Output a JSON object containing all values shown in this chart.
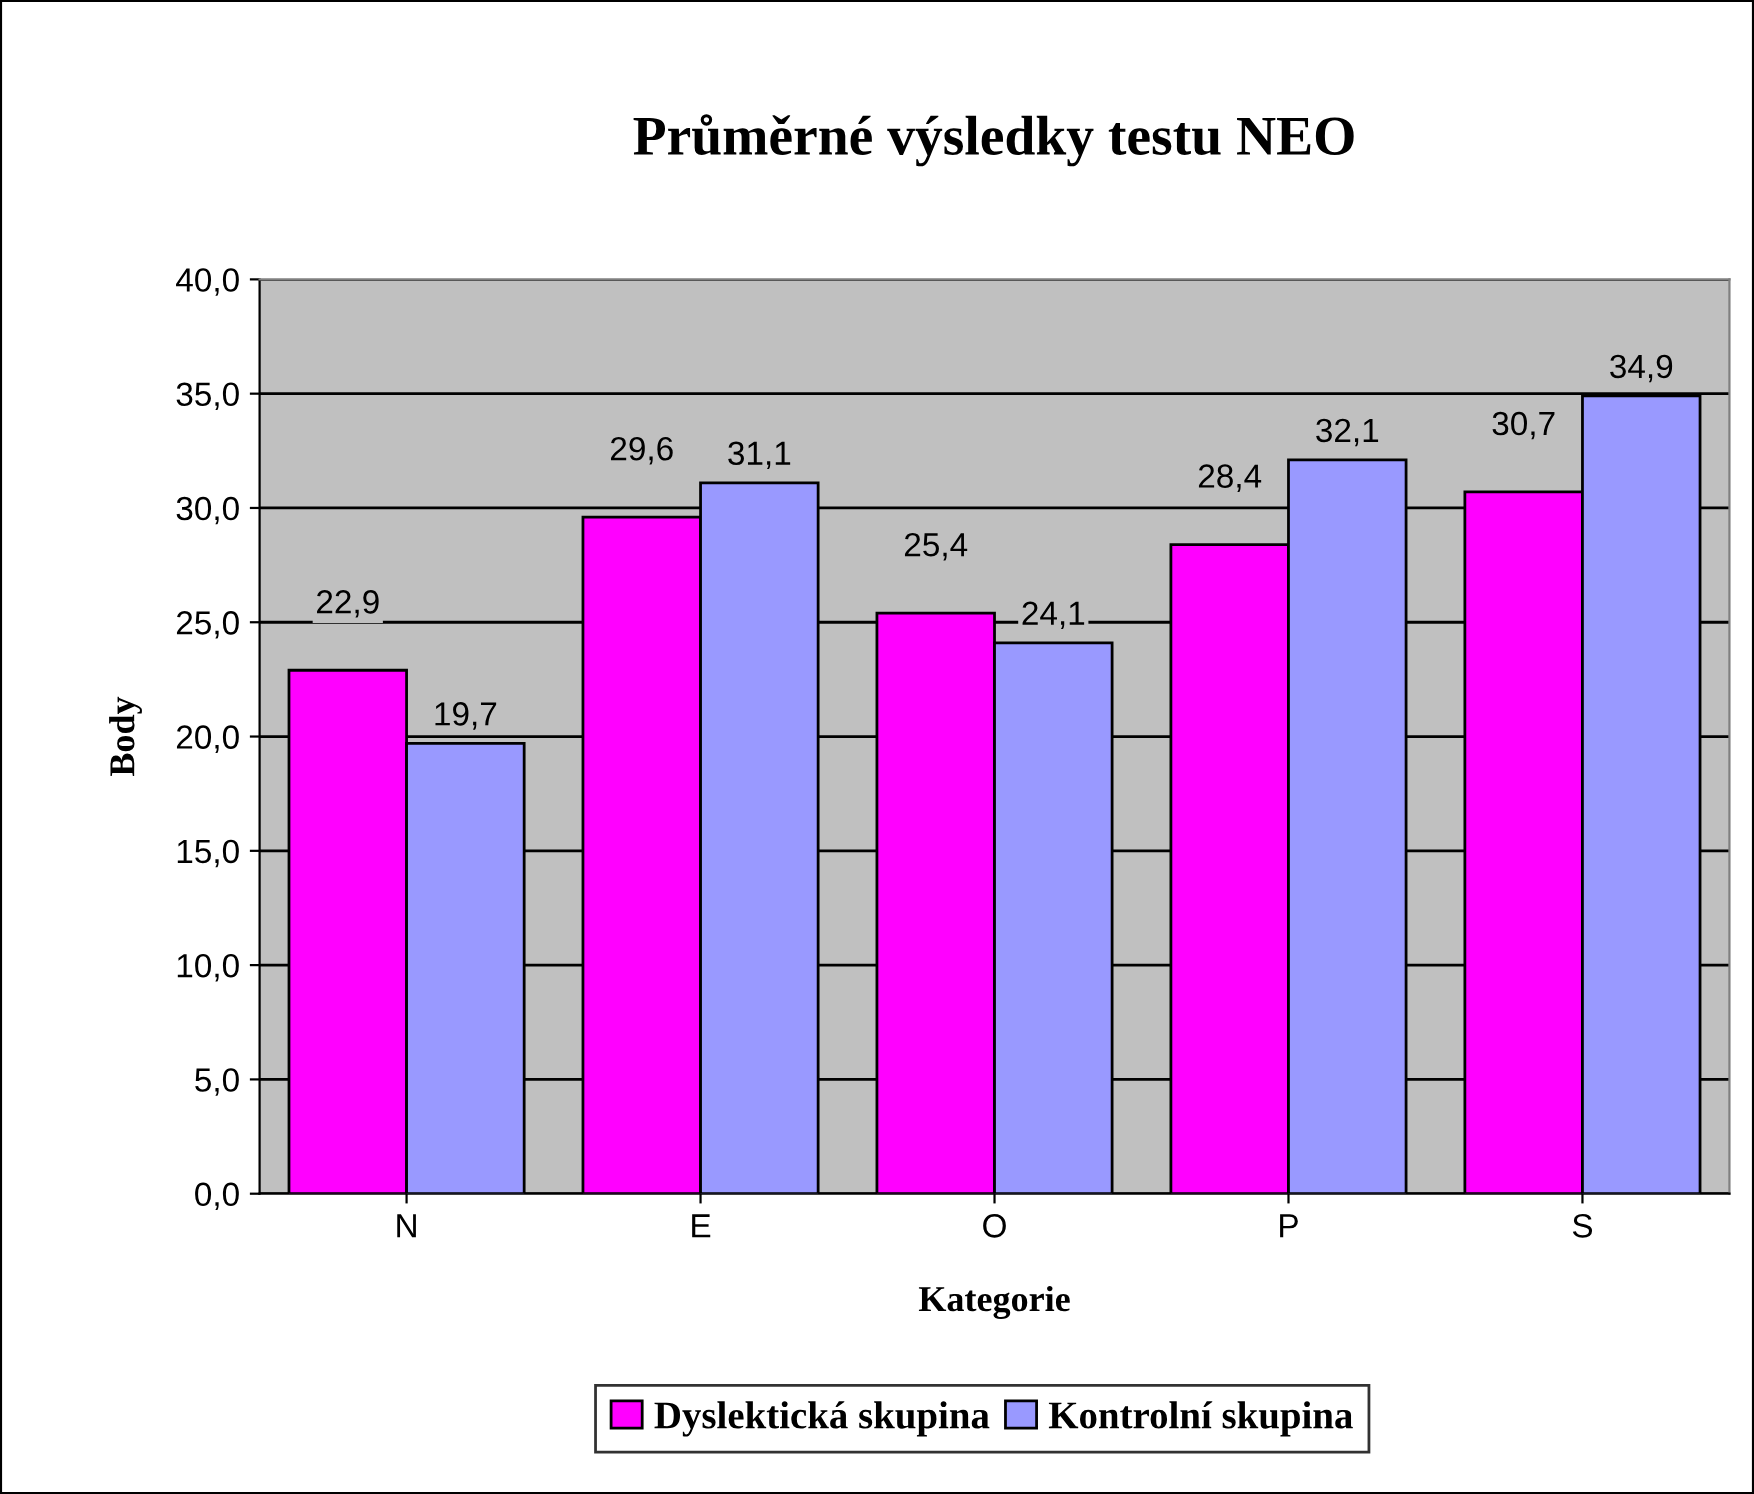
{
  "chart_data": {
    "type": "bar",
    "title": "Průměrné výsledky testu NEO",
    "xlabel": "Kategorie",
    "ylabel": "Body",
    "categories": [
      "N",
      "E",
      "O",
      "P",
      "S"
    ],
    "series": [
      {
        "name": "Dyslektická skupina",
        "color": "#ff00ff",
        "values": [
          22.9,
          29.6,
          25.4,
          28.4,
          30.7
        ],
        "value_labels": [
          "22,9",
          "29,6",
          "25,4",
          "28,4",
          "30,7"
        ]
      },
      {
        "name": "Kontrolní skupina",
        "color": "#9999ff",
        "values": [
          19.7,
          31.1,
          24.1,
          32.1,
          34.9
        ],
        "value_labels": [
          "19,7",
          "31,1",
          "24,1",
          "32,1",
          "34,9"
        ]
      }
    ],
    "ylim": [
      0,
      40
    ],
    "yticks": [
      {
        "value": 0,
        "label": "0,0"
      },
      {
        "value": 5,
        "label": "5,0"
      },
      {
        "value": 10,
        "label": "10,0"
      },
      {
        "value": 15,
        "label": "15,0"
      },
      {
        "value": 20,
        "label": "20,0"
      },
      {
        "value": 25,
        "label": "25,0"
      },
      {
        "value": 30,
        "label": "30,0"
      },
      {
        "value": 35,
        "label": "35,0"
      },
      {
        "value": 40,
        "label": "40,0"
      }
    ],
    "grid": "y",
    "legend": "bottom"
  }
}
